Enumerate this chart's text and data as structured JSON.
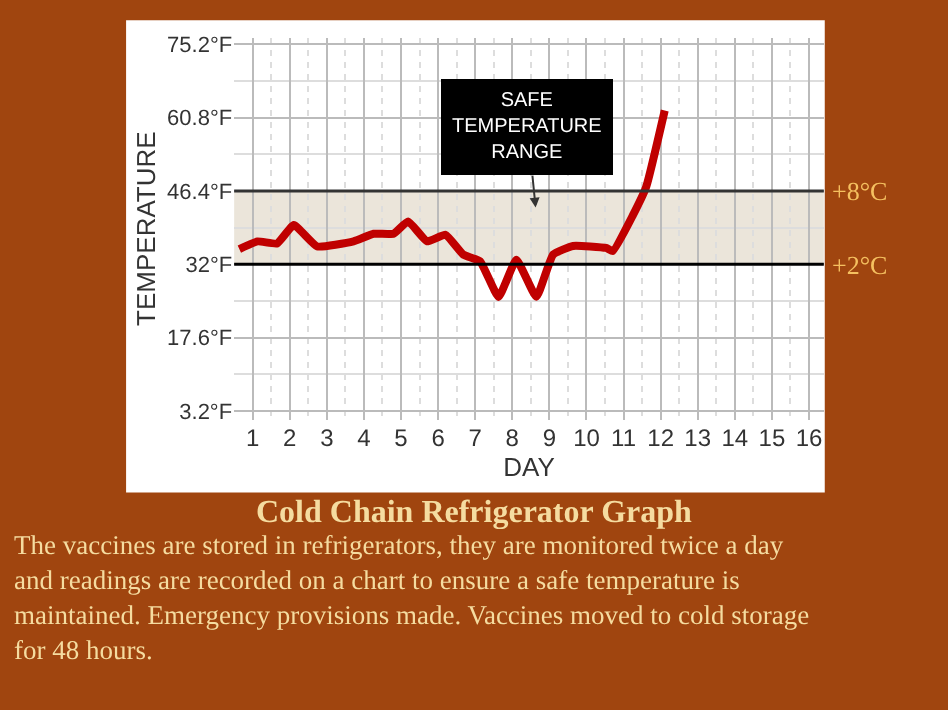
{
  "chart_data": {
    "type": "line",
    "title": "Cold Chain Refrigerator Graph",
    "xlabel": "DAY",
    "ylabel": "TEMPERATURE",
    "annotations": [
      "SAFE\nTEMPERATURE\nRANGE",
      "The vaccines are stored in refrigerators, they are monitored twice a day and readings are recorded on a chart to ensure a safe temperature is maintained. Emergency provisions made. Vaccines moved to cold storage for 48 hours."
    ],
    "series": [
      {
        "color": "#c00000",
        "x": [
          0.64,
          1.13,
          1.66,
          2.11,
          2.74,
          3.72,
          4.26,
          4.8,
          5.19,
          5.7,
          6.2,
          6.68,
          7.13,
          7.63,
          8.11,
          8.65,
          9.1,
          9.64,
          10.53,
          10.71,
          11.25,
          11.61,
          12.11
        ],
        "values": [
          35.0,
          36.5,
          36.1,
          39.7,
          35.5,
          36.5,
          38.0,
          38.0,
          40.4,
          36.5,
          37.8,
          33.9,
          32.6,
          25.6,
          32.9,
          25.6,
          33.9,
          35.6,
          35.2,
          34.6,
          41.6,
          47.2,
          62.2
        ]
      }
    ],
    "xlim": [
      0.5,
      16.4
    ],
    "xticks": [
      1,
      2,
      3,
      4,
      5,
      6,
      7,
      8,
      9,
      10,
      11,
      12,
      13,
      14,
      15,
      16
    ],
    "ylim": [
      1.5,
      76.5
    ],
    "yticks": [
      {
        "value": 3.2,
        "label": "3.2°F"
      },
      {
        "value": 17.6,
        "label": "17.6°F"
      },
      {
        "value": 32,
        "label": "32°F"
      },
      {
        "value": 46.4,
        "label": "46.4°F"
      },
      {
        "value": 60.8,
        "label": "60.8°F"
      },
      {
        "value": 75.2,
        "label": "75.2°F"
      }
    ],
    "ref_lines": [
      {
        "axis": "y",
        "value": 46.4,
        "label": "+8°C",
        "color": "#333333"
      },
      {
        "axis": "y",
        "value": 32,
        "label": "+2°C",
        "color": "#000000"
      }
    ],
    "bands": [
      {
        "axis": "y",
        "from": 32,
        "to": 46.4,
        "color": "#ebe5da"
      }
    ],
    "grid": true,
    "marker": "none",
    "line_style": "solid"
  }
}
